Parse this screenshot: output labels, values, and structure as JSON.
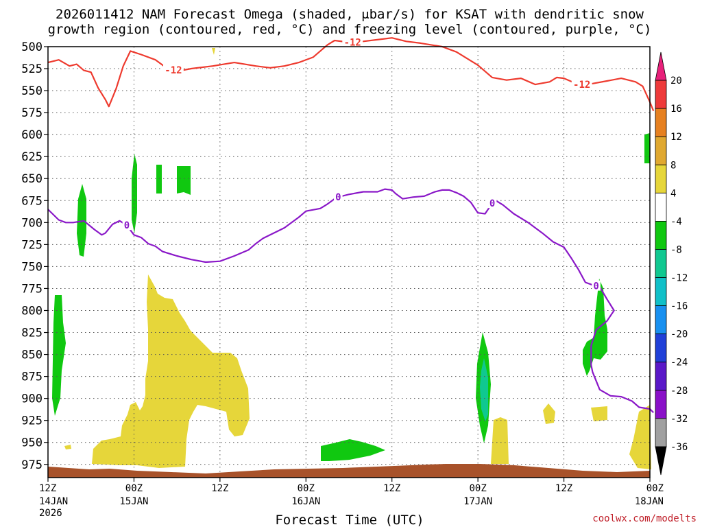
{
  "chart_data": {
    "type": "heatmap",
    "title_line1": "2026011412 NAM Forecast Omega (shaded, μbar/s) for KSAT with dendritic snow",
    "title_line2": "growth region (contoured, red, °C) and freezing level (contoured, purple, °C)",
    "xlabel": "Forecast Time (UTC)",
    "credit": "coolwx.com/modelts",
    "xlim_hours": [
      0,
      84
    ],
    "ylim_hpa": [
      500,
      990
    ],
    "y_ticks": [
      500,
      525,
      550,
      575,
      600,
      625,
      650,
      675,
      700,
      725,
      750,
      775,
      800,
      825,
      850,
      875,
      900,
      925,
      950,
      975
    ],
    "x_ticks": [
      {
        "hour": 0,
        "time": "12Z",
        "date": "14JAN",
        "year": "2026"
      },
      {
        "hour": 12,
        "time": "00Z",
        "date": "15JAN",
        "year": ""
      },
      {
        "hour": 24,
        "time": "12Z",
        "date": "",
        "year": ""
      },
      {
        "hour": 36,
        "time": "00Z",
        "date": "16JAN",
        "year": ""
      },
      {
        "hour": 48,
        "time": "12Z",
        "date": "",
        "year": ""
      },
      {
        "hour": 60,
        "time": "00Z",
        "date": "17JAN",
        "year": ""
      },
      {
        "hour": 72,
        "time": "12Z",
        "date": "",
        "year": ""
      },
      {
        "hour": 84,
        "time": "00Z",
        "date": "18JAN",
        "year": ""
      }
    ],
    "colorbar": {
      "levels": [
        -36,
        -32,
        -28,
        -24,
        -20,
        -16,
        -12,
        -8,
        -4,
        4,
        8,
        12,
        16,
        20
      ],
      "colors": [
        "#000000",
        "#a0a0a0",
        "#8a10c8",
        "#5a18c8",
        "#2040d8",
        "#1890f0",
        "#10c0c8",
        "#10c890",
        "#10c810",
        "#ffffff",
        "#e6d63a",
        "#e0a830",
        "#e68020",
        "#ee3a3a",
        "#e8207a"
      ]
    },
    "series": [
      {
        "name": "Dendritic growth region -12°C",
        "color": "#ee3a2e",
        "label": "-12",
        "label_hours": [
          17.5,
          42.5,
          74.5
        ],
        "points": [
          [
            0,
            518
          ],
          [
            1.5,
            515
          ],
          [
            3,
            522
          ],
          [
            4,
            520
          ],
          [
            5,
            527
          ],
          [
            6,
            529
          ],
          [
            7,
            547
          ],
          [
            8,
            560
          ],
          [
            8.5,
            568
          ],
          [
            9.5,
            548
          ],
          [
            10.5,
            522
          ],
          [
            11.5,
            505
          ],
          [
            13,
            509
          ],
          [
            15,
            515
          ],
          [
            16.5,
            524
          ],
          [
            18,
            528
          ],
          [
            20,
            525
          ],
          [
            23,
            522
          ],
          [
            26,
            518
          ],
          [
            29,
            522
          ],
          [
            31,
            524
          ],
          [
            33,
            522
          ],
          [
            35,
            518
          ],
          [
            37,
            512
          ],
          [
            39,
            498
          ],
          [
            40,
            493
          ],
          [
            42,
            495
          ],
          [
            44,
            494
          ],
          [
            47,
            491
          ],
          [
            48,
            490
          ],
          [
            50,
            494
          ],
          [
            52,
            496
          ],
          [
            55,
            500
          ],
          [
            57,
            506
          ],
          [
            60,
            521
          ],
          [
            62,
            535
          ],
          [
            64,
            538
          ],
          [
            66,
            536
          ],
          [
            68,
            543
          ],
          [
            70,
            540
          ],
          [
            71,
            535
          ],
          [
            72,
            536
          ],
          [
            74,
            543
          ],
          [
            76,
            542
          ],
          [
            78,
            539
          ],
          [
            80,
            536
          ],
          [
            82,
            540
          ],
          [
            83,
            545
          ],
          [
            84,
            563
          ],
          [
            84.5,
            573
          ]
        ]
      },
      {
        "name": "Freezing level 0°C",
        "color": "#8a18c8",
        "label": "0",
        "label_hours": [
          11,
          40.5,
          62,
          76.5
        ],
        "points": [
          [
            0,
            685
          ],
          [
            1.5,
            697
          ],
          [
            2.5,
            700
          ],
          [
            3.5,
            700
          ],
          [
            5,
            698
          ],
          [
            6.5,
            708
          ],
          [
            7.5,
            714
          ],
          [
            8,
            712
          ],
          [
            9,
            702
          ],
          [
            10,
            698
          ],
          [
            11,
            703
          ],
          [
            12,
            714
          ],
          [
            13,
            717
          ],
          [
            14,
            724
          ],
          [
            15,
            727
          ],
          [
            16,
            733
          ],
          [
            18,
            738
          ],
          [
            20,
            742
          ],
          [
            22,
            745
          ],
          [
            24,
            744
          ],
          [
            26,
            738
          ],
          [
            28,
            731
          ],
          [
            29,
            724
          ],
          [
            30,
            718
          ],
          [
            31,
            714
          ],
          [
            32,
            710
          ],
          [
            33,
            706
          ],
          [
            34,
            700
          ],
          [
            35,
            694
          ],
          [
            36,
            687
          ],
          [
            38,
            684
          ],
          [
            39,
            679
          ],
          [
            40,
            673
          ],
          [
            40.5,
            671
          ],
          [
            42,
            668
          ],
          [
            44,
            665
          ],
          [
            46,
            665
          ],
          [
            47,
            662
          ],
          [
            48,
            663
          ],
          [
            48.5,
            667
          ],
          [
            49.5,
            673
          ],
          [
            51,
            671
          ],
          [
            52.5,
            670
          ],
          [
            54,
            665
          ],
          [
            55,
            663
          ],
          [
            56,
            663
          ],
          [
            57,
            666
          ],
          [
            58,
            670
          ],
          [
            59,
            677
          ],
          [
            60,
            689
          ],
          [
            61,
            690
          ],
          [
            62,
            678
          ],
          [
            62.5,
            675
          ],
          [
            63.5,
            680
          ],
          [
            65,
            690
          ],
          [
            67,
            700
          ],
          [
            69,
            712
          ],
          [
            70.5,
            722
          ],
          [
            72,
            728
          ],
          [
            73,
            740
          ],
          [
            74,
            753
          ],
          [
            75,
            768
          ],
          [
            76,
            771
          ],
          [
            77,
            773
          ],
          [
            78,
            787
          ],
          [
            79,
            800
          ],
          [
            78,
            812
          ],
          [
            76.5,
            822
          ],
          [
            75.8,
            840
          ],
          [
            75.8,
            862
          ],
          [
            76,
            870
          ],
          [
            77,
            890
          ],
          [
            78.5,
            897
          ],
          [
            80,
            898
          ],
          [
            81.5,
            903
          ],
          [
            82.5,
            910
          ],
          [
            84,
            912
          ],
          [
            84.5,
            916
          ]
        ]
      }
    ]
  }
}
